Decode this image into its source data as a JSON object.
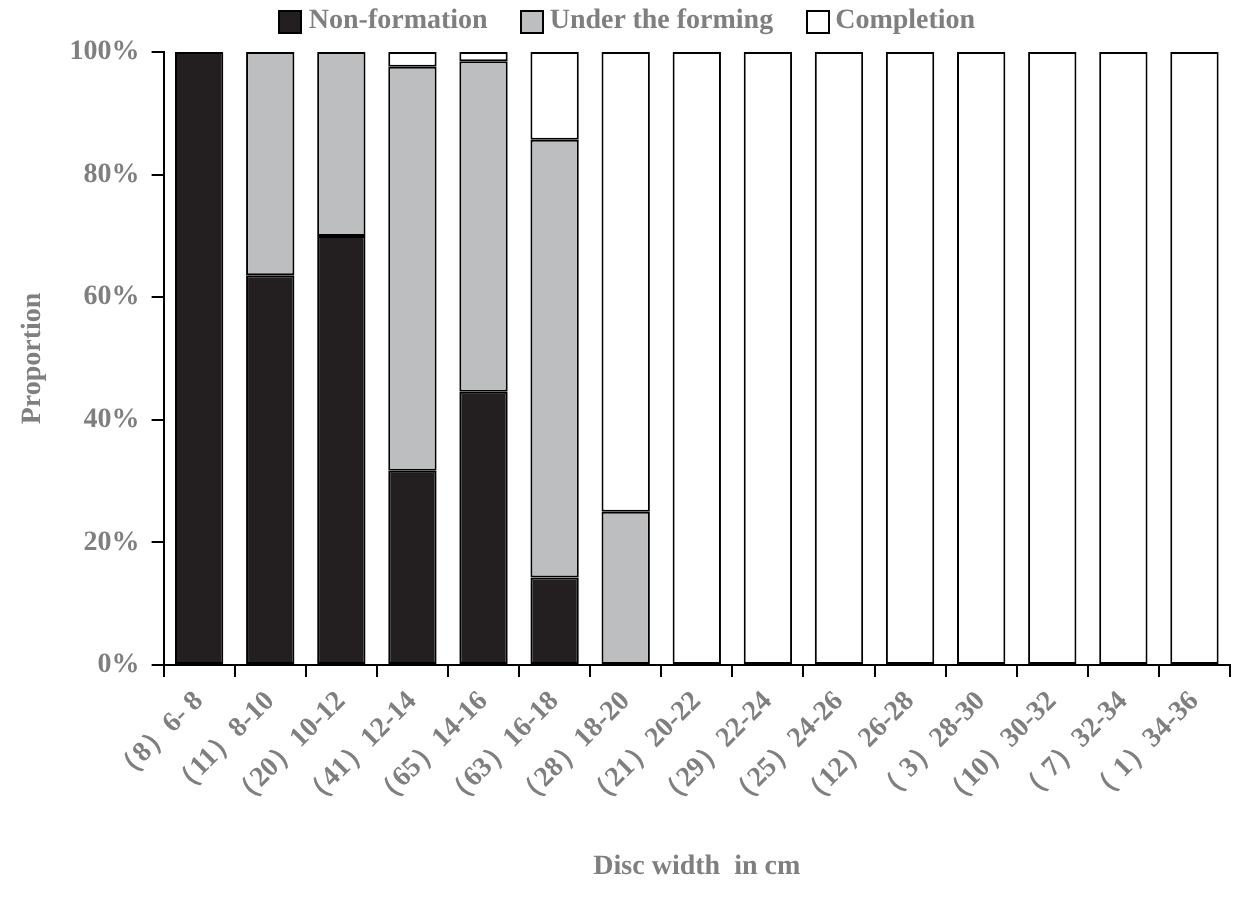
{
  "chart_data": {
    "type": "bar",
    "stacked": true,
    "xlabel": "Disc width  in cm",
    "ylabel": "Proportion",
    "categories": [
      "（8）6- 8",
      "（11）8-10",
      "（20）10-12",
      "（41）12-14",
      "（65）14-16",
      "（63）16-18",
      "（28）18-20",
      "（21）20-22",
      "（29）22-24",
      "（25）24-26",
      "（12）26-28",
      "（ 3）28-30",
      "（10）30-32",
      "（ 7）32-34",
      "（ 1）34-36"
    ],
    "series": [
      {
        "name": "Non-formation",
        "color": "#231f20",
        "values": [
          100,
          63.6,
          70,
          31.7,
          44.6,
          14.3,
          0,
          0,
          0,
          0,
          0,
          0,
          0,
          0,
          0
        ]
      },
      {
        "name": "Under the forming",
        "color": "#bcbec0",
        "values": [
          0,
          36.4,
          30,
          65.9,
          53.9,
          71.4,
          25,
          0,
          0,
          0,
          0,
          0,
          0,
          0,
          0
        ]
      },
      {
        "name": "Completion",
        "color": "#ffffff",
        "values": [
          0,
          0,
          0,
          2.4,
          1.5,
          14.3,
          75,
          100,
          100,
          100,
          100,
          100,
          100,
          100,
          100
        ]
      }
    ],
    "ylim": [
      0,
      100
    ],
    "yticks": [
      {
        "value": 0,
        "label": "0%"
      },
      {
        "value": 20,
        "label": "20%"
      },
      {
        "value": 40,
        "label": "40%"
      },
      {
        "value": 60,
        "label": "60%"
      },
      {
        "value": 80,
        "label": "80%"
      },
      {
        "value": 100,
        "label": "100%"
      }
    ],
    "grid": false,
    "legend": "top"
  }
}
